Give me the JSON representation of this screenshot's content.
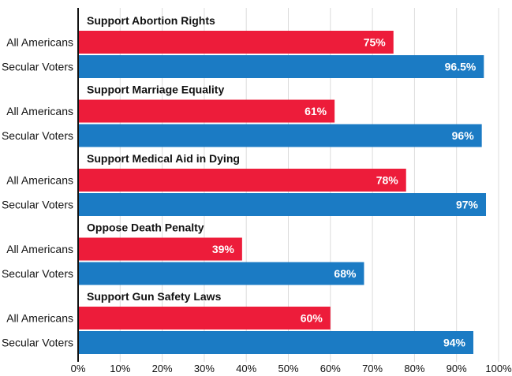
{
  "chart_data": {
    "type": "bar",
    "orientation": "horizontal",
    "x_ticks": [
      "0%",
      "10%",
      "20%",
      "30%",
      "40%",
      "50%",
      "60%",
      "70%",
      "80%",
      "90%",
      "100%"
    ],
    "xlim": [
      0,
      100
    ],
    "grid": true,
    "colors": {
      "All Americans": "#ED1C3A",
      "Secular Voters": "#1B7BC4"
    },
    "groups": [
      {
        "title": "Support Abortion Rights",
        "bars": [
          {
            "category": "All Americans",
            "value": 75,
            "label": "75%"
          },
          {
            "category": "Secular Voters",
            "value": 96.5,
            "label": "96.5%"
          }
        ]
      },
      {
        "title": "Support Marriage Equality",
        "bars": [
          {
            "category": "All Americans",
            "value": 61,
            "label": "61%"
          },
          {
            "category": "Secular Voters",
            "value": 96,
            "label": "96%"
          }
        ]
      },
      {
        "title": "Support Medical Aid in Dying",
        "bars": [
          {
            "category": "All Americans",
            "value": 78,
            "label": "78%"
          },
          {
            "category": "Secular Voters",
            "value": 97,
            "label": "97%"
          }
        ]
      },
      {
        "title": "Oppose Death Penalty",
        "bars": [
          {
            "category": "All Americans",
            "value": 39,
            "label": "39%"
          },
          {
            "category": "Secular Voters",
            "value": 68,
            "label": "68%"
          }
        ]
      },
      {
        "title": "Support Gun Safety Laws",
        "bars": [
          {
            "category": "All Americans",
            "value": 60,
            "label": "60%"
          },
          {
            "category": "Secular Voters",
            "value": 94,
            "label": "94%"
          }
        ]
      }
    ]
  }
}
